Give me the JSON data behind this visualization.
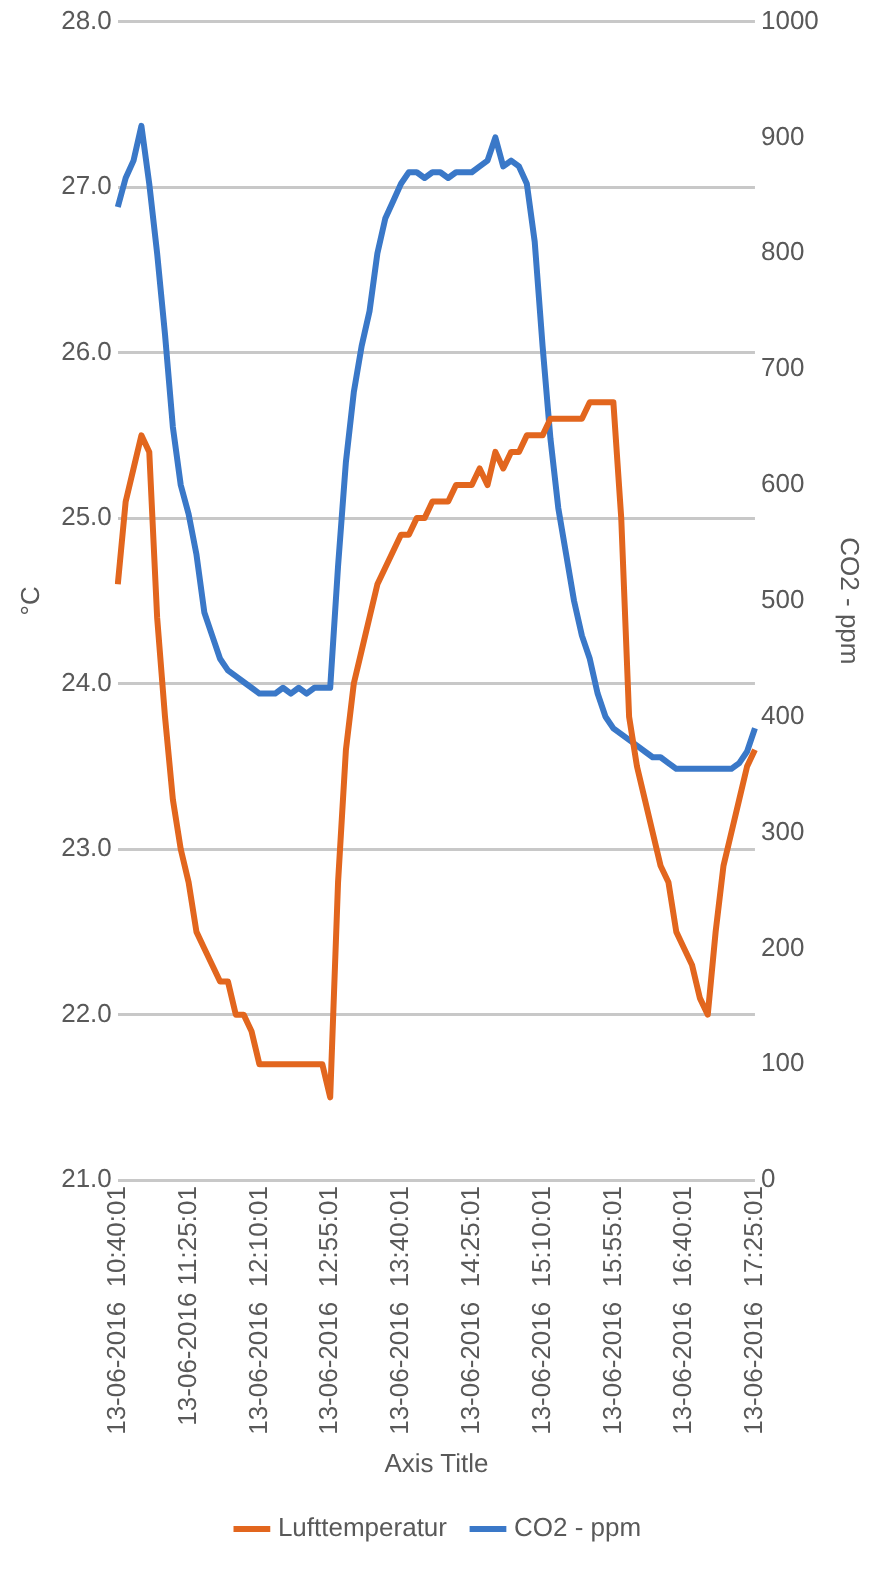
{
  "chart_data": {
    "type": "line",
    "xlabel": "Axis Title",
    "ylabel": "°C",
    "y2label": "CO2 - ppm",
    "categories": [
      "13-06-2016  10:40:01",
      null,
      null,
      null,
      null,
      null,
      null,
      null,
      null,
      "13-06-2016 11:25:01",
      null,
      null,
      null,
      null,
      null,
      null,
      null,
      null,
      "13-06-2016  12:10:01",
      null,
      null,
      null,
      null,
      null,
      null,
      null,
      null,
      "13-06-2016  12:55:01",
      null,
      null,
      null,
      null,
      null,
      null,
      null,
      null,
      "13-06-2016  13:40:01",
      null,
      null,
      null,
      null,
      null,
      null,
      null,
      null,
      "13-06-2016  14:25:01",
      null,
      null,
      null,
      null,
      null,
      null,
      null,
      null,
      "13-06-2016  15:10:01",
      null,
      null,
      null,
      null,
      null,
      null,
      null,
      null,
      "13-06-2016  15:55:01",
      null,
      null,
      null,
      null,
      null,
      null,
      null,
      null,
      "13-06-2016  16:40:01",
      null,
      null,
      null,
      null,
      null,
      null,
      null,
      null,
      "13-06-2016  17:25:01"
    ],
    "series": [
      {
        "name": "Lufttemperatur",
        "color": "#e2661e",
        "values": [
          24.6,
          25.1,
          25.3,
          25.5,
          25.4,
          24.4,
          23.8,
          23.3,
          23.0,
          22.8,
          22.5,
          22.4,
          22.3,
          22.2,
          22.2,
          22.0,
          22.0,
          21.9,
          21.7,
          21.7,
          21.7,
          21.7,
          21.7,
          21.7,
          21.7,
          21.7,
          21.7,
          21.5,
          22.8,
          23.6,
          24.0,
          24.2,
          24.4,
          24.6,
          24.7,
          24.8,
          24.9,
          24.9,
          25.0,
          25.0,
          25.1,
          25.1,
          25.1,
          25.2,
          25.2,
          25.2,
          25.3,
          25.2,
          25.4,
          25.3,
          25.4,
          25.4,
          25.5,
          25.5,
          25.5,
          25.6,
          25.6,
          25.6,
          25.6,
          25.6,
          25.7,
          25.7,
          25.7,
          25.7,
          25.0,
          23.8,
          23.5,
          23.3,
          23.1,
          22.9,
          22.8,
          22.5,
          22.4,
          22.3,
          22.1,
          22.0,
          22.5,
          22.9,
          23.1,
          23.3,
          23.5,
          23.6
        ]
      },
      {
        "name": "CO2 - ppm",
        "color": "#3a78c8",
        "axis": "y2",
        "values": [
          840,
          865,
          880,
          910,
          860,
          800,
          730,
          650,
          600,
          575,
          540,
          490,
          470,
          450,
          440,
          435,
          430,
          425,
          420,
          420,
          420,
          425,
          420,
          425,
          420,
          425,
          425,
          425,
          530,
          620,
          680,
          720,
          750,
          800,
          830,
          845,
          860,
          870,
          870,
          865,
          870,
          870,
          865,
          870,
          870,
          870,
          875,
          880,
          900,
          875,
          880,
          875,
          860,
          810,
          720,
          640,
          580,
          540,
          500,
          470,
          450,
          420,
          400,
          390,
          385,
          380,
          375,
          370,
          365,
          365,
          360,
          355,
          355,
          355,
          355,
          355,
          355,
          355,
          355,
          360,
          370,
          390
        ]
      }
    ],
    "ylim": [
      21,
      28
    ],
    "yticks": [
      {
        "value": 21,
        "label": "21.0"
      },
      {
        "value": 22,
        "label": "22.0"
      },
      {
        "value": 23,
        "label": "23.0"
      },
      {
        "value": 24,
        "label": "24.0"
      },
      {
        "value": 25,
        "label": "25.0"
      },
      {
        "value": 26,
        "label": "26.0"
      },
      {
        "value": 27,
        "label": "27.0"
      },
      {
        "value": 28,
        "label": "28.0"
      }
    ],
    "y2lim": [
      0,
      1000
    ],
    "y2ticks": [
      0,
      100,
      200,
      300,
      400,
      500,
      600,
      700,
      800,
      900,
      1000
    ],
    "grid": "y",
    "legend": "bottom"
  }
}
